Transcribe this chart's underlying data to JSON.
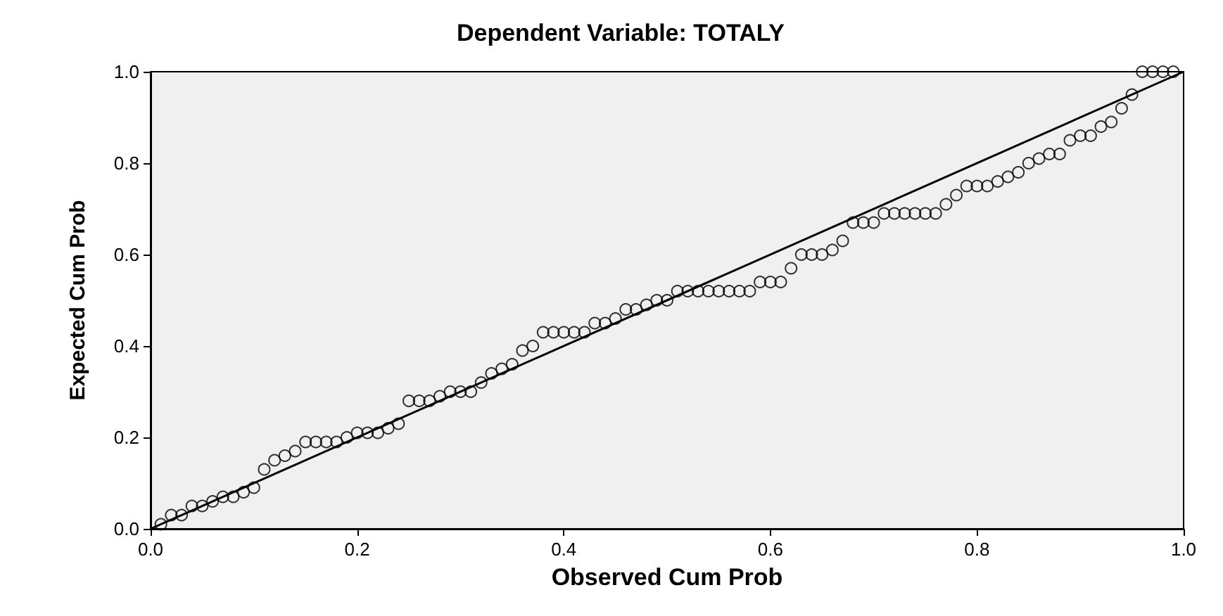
{
  "chart_data": {
    "type": "scatter",
    "title": "Dependent Variable: TOTALY",
    "xlabel": "Observed Cum Prob",
    "ylabel": "Expected Cum Prob",
    "xlim": [
      0,
      1
    ],
    "ylim": [
      0,
      1
    ],
    "xticks": [
      {
        "value": 0,
        "label": "0.0"
      },
      {
        "value": 0.2,
        "label": "0.2"
      },
      {
        "value": 0.4,
        "label": "0.4"
      },
      {
        "value": 0.6,
        "label": "0.6"
      },
      {
        "value": 0.8,
        "label": "0.8"
      },
      {
        "value": 1,
        "label": "1.0"
      }
    ],
    "yticks": [
      {
        "value": 0,
        "label": "0.0"
      },
      {
        "value": 0.2,
        "label": "0.2"
      },
      {
        "value": 0.4,
        "label": "0.4"
      },
      {
        "value": 0.6,
        "label": "0.6"
      },
      {
        "value": 0.8,
        "label": "0.8"
      },
      {
        "value": 1,
        "label": "1.0"
      }
    ],
    "grid": false,
    "series": [
      {
        "color": "#000000",
        "marker": "circle",
        "x": [
          0.01,
          0.02,
          0.03,
          0.04,
          0.05,
          0.06,
          0.07,
          0.08,
          0.09,
          0.1,
          0.11,
          0.12,
          0.13,
          0.14,
          0.15,
          0.16,
          0.17,
          0.18,
          0.19,
          0.2,
          0.21,
          0.22,
          0.23,
          0.24,
          0.25,
          0.26,
          0.27,
          0.28,
          0.29,
          0.3,
          0.31,
          0.32,
          0.33,
          0.34,
          0.35,
          0.36,
          0.37,
          0.38,
          0.39,
          0.4,
          0.41,
          0.42,
          0.43,
          0.44,
          0.45,
          0.46,
          0.47,
          0.48,
          0.49,
          0.5,
          0.51,
          0.52,
          0.53,
          0.54,
          0.55,
          0.56,
          0.57,
          0.58,
          0.59,
          0.6,
          0.61,
          0.62,
          0.63,
          0.64,
          0.65,
          0.66,
          0.67,
          0.68,
          0.69,
          0.7,
          0.71,
          0.72,
          0.73,
          0.74,
          0.75,
          0.76,
          0.77,
          0.78,
          0.79,
          0.8,
          0.81,
          0.82,
          0.83,
          0.84,
          0.85,
          0.86,
          0.87,
          0.88,
          0.89,
          0.9,
          0.91,
          0.92,
          0.93,
          0.94,
          0.95,
          0.96,
          0.97,
          0.98,
          0.99
        ],
        "values": [
          0.01,
          0.03,
          0.03,
          0.05,
          0.05,
          0.06,
          0.07,
          0.07,
          0.08,
          0.09,
          0.13,
          0.15,
          0.16,
          0.17,
          0.19,
          0.19,
          0.19,
          0.19,
          0.2,
          0.21,
          0.21,
          0.21,
          0.22,
          0.23,
          0.28,
          0.28,
          0.28,
          0.29,
          0.3,
          0.3,
          0.3,
          0.32,
          0.34,
          0.35,
          0.36,
          0.39,
          0.4,
          0.43,
          0.43,
          0.43,
          0.43,
          0.43,
          0.45,
          0.45,
          0.46,
          0.48,
          0.48,
          0.49,
          0.5,
          0.5,
          0.52,
          0.52,
          0.52,
          0.52,
          0.52,
          0.52,
          0.52,
          0.52,
          0.54,
          0.54,
          0.54,
          0.57,
          0.6,
          0.6,
          0.6,
          0.61,
          0.63,
          0.67,
          0.67,
          0.67,
          0.69,
          0.69,
          0.69,
          0.69,
          0.69,
          0.69,
          0.71,
          0.73,
          0.75,
          0.75,
          0.75,
          0.76,
          0.77,
          0.78,
          0.8,
          0.81,
          0.82,
          0.82,
          0.85,
          0.86,
          0.86,
          0.88,
          0.89,
          0.92,
          0.95,
          1.0,
          1.0,
          1.0,
          1.0
        ]
      },
      {
        "type": "line",
        "color": "#000000",
        "marker": "none",
        "line_style": "solid",
        "x": [
          0,
          1
        ],
        "values": [
          0,
          1
        ]
      }
    ]
  }
}
